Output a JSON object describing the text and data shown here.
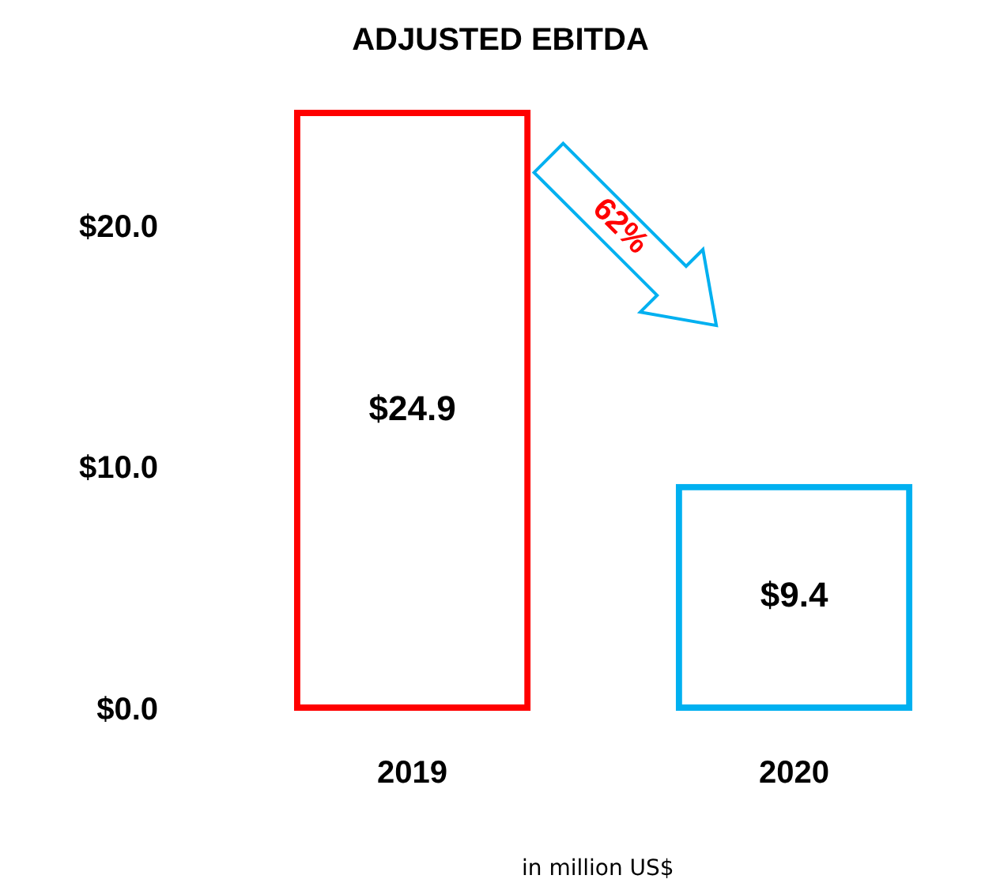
{
  "chart_data": {
    "type": "bar",
    "title": "ADJUSTED EBITDA",
    "categories": [
      "2019",
      "2020"
    ],
    "values": [
      24.9,
      9.4
    ],
    "colors": [
      "#ff0000",
      "#00b0f0"
    ],
    "value_labels": [
      "$24.9",
      "$9.4"
    ],
    "ylim": [
      0,
      25
    ],
    "yticks": [
      {
        "value": 0,
        "label": "$0.0"
      },
      {
        "value": 10,
        "label": "$10.0"
      },
      {
        "value": 20,
        "label": "$20.0"
      }
    ],
    "grid": false,
    "legend": false,
    "annotations": [
      "62%",
      "in million US$"
    ]
  }
}
